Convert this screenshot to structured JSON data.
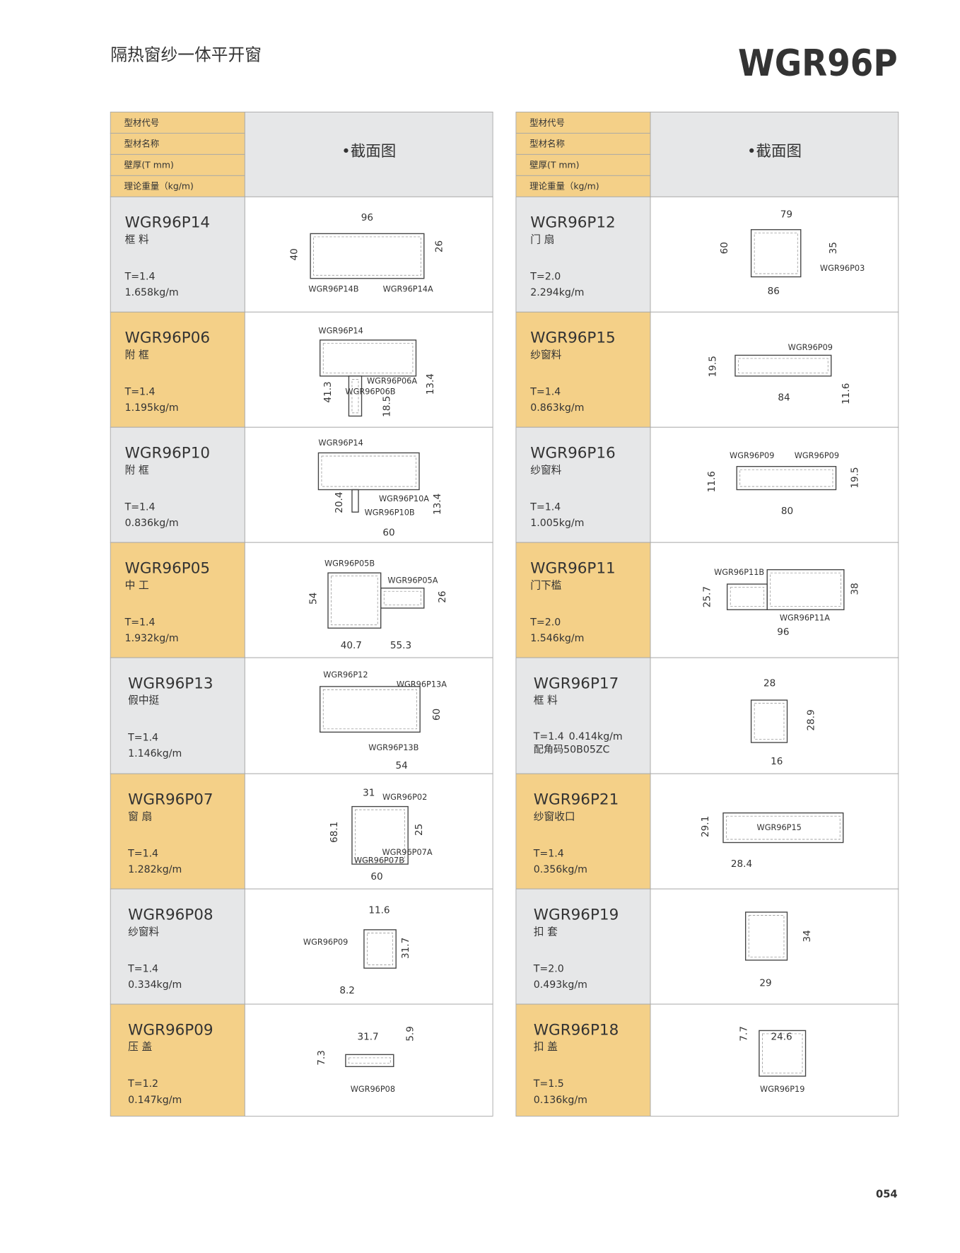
{
  "header": {
    "subtitle": "隔热窗纱一体平开窗",
    "title": "WGR96P"
  },
  "tables": [
    {
      "head": {
        "labels": [
          "型材代号",
          "型材名称",
          "壁厚(T mm)",
          "理论重量（kg/m)"
        ],
        "section": "•截面图"
      },
      "rows": [
        {
          "code": "WGR96P14",
          "name": "框 料",
          "thickness": "T=1.4",
          "weight": "1.658kg/m",
          "drawing": [
            "96",
            "40",
            "26",
            "WGR96P14B",
            "WGR96P14A"
          ]
        },
        {
          "code": "WGR96P06",
          "name": "附 框",
          "thickness": "T=1.4",
          "weight": "1.195kg/m",
          "drawing": [
            "WGR96P14",
            "WGR96P06A",
            "WGR96P06B",
            "41.3",
            "18.5",
            "13.4"
          ]
        },
        {
          "code": "WGR96P10",
          "name": "附 框",
          "thickness": "T=1.4",
          "weight": "0.836kg/m",
          "drawing": [
            "WGR96P14",
            "WGR96P10A",
            "WGR96P10B",
            "20.4",
            "13.4",
            "60"
          ]
        },
        {
          "code": "WGR96P05",
          "name": "中 工",
          "thickness": "T=1.4",
          "weight": "1.932kg/m",
          "drawing": [
            "WGR96P05B",
            "WGR96P05A",
            "54",
            "26",
            "40.7",
            "55.3"
          ]
        },
        {
          "code": "WGR96P13",
          "name": "假中挺",
          "thickness": "T=1.4",
          "weight": "1.146kg/m",
          "drawing": [
            "WGR96P12",
            "WGR96P13A",
            "60",
            "WGR96P13B",
            "54"
          ]
        },
        {
          "code": "WGR96P07",
          "name": "窗 扇",
          "thickness": "T=1.4",
          "weight": "1.282kg/m",
          "drawing": [
            "31",
            "WGR96P02",
            "68.1",
            "25",
            "WGR96P07A",
            "WGR96P07B",
            "60"
          ]
        },
        {
          "code": "WGR96P08",
          "name": "纱窗料",
          "thickness": "T=1.4",
          "weight": "0.334kg/m",
          "drawing": [
            "11.6",
            "WGR96P09",
            "31.7",
            "8.2"
          ]
        },
        {
          "code": "WGR96P09",
          "name": "压 盖",
          "thickness": "T=1.2",
          "weight": "0.147kg/m",
          "drawing": [
            "31.7",
            "5.9",
            "7.3",
            "WGR96P08"
          ]
        }
      ]
    },
    {
      "head": {
        "labels": [
          "型材代号",
          "型材名称",
          "壁厚(T mm)",
          "理论重量（kg/m)"
        ],
        "section": "•截面图"
      },
      "rows": [
        {
          "code": "WGR96P12",
          "name": "门 扇",
          "thickness": "T=2.0",
          "weight": "2.294kg/m",
          "drawing": [
            "79",
            "60",
            "35",
            "WGR96P03",
            "86"
          ]
        },
        {
          "code": "WGR96P15",
          "name": "纱窗料",
          "thickness": "T=1.4",
          "weight": "0.863kg/m",
          "drawing": [
            "WGR96P09",
            "19.5",
            "84",
            "11.6"
          ]
        },
        {
          "code": "WGR96P16",
          "name": "纱窗料",
          "thickness": "T=1.4",
          "weight": "1.005kg/m",
          "drawing": [
            "WGR96P09",
            "WGR96P09",
            "11.6",
            "19.5",
            "80"
          ]
        },
        {
          "code": "WGR96P11",
          "name": "门下槛",
          "thickness": "T=2.0",
          "weight": "1.546kg/m",
          "drawing": [
            "WGR96P11B",
            "25.7",
            "38",
            "WGR96P11A",
            "96"
          ]
        },
        {
          "code": "WGR96P17",
          "name": "框 料",
          "thickness": "T=1.4",
          "weight": "0.414kg/m",
          "note": "配角码50B05ZC",
          "drawing": [
            "28",
            "28.9",
            "16"
          ]
        },
        {
          "code": "WGR96P21",
          "name": "纱窗收口",
          "thickness": "T=1.4",
          "weight": "0.356kg/m",
          "drawing": [
            "29.1",
            "WGR96P15",
            "28.4"
          ]
        },
        {
          "code": "WGR96P19",
          "name": "扣 套",
          "thickness": "T=2.0",
          "weight": "0.493kg/m",
          "drawing": [
            "34",
            "29"
          ]
        },
        {
          "code": "WGR96P18",
          "name": "扣 盖",
          "thickness": "T=1.5",
          "weight": "0.136kg/m",
          "drawing": [
            "7.7",
            "24.6",
            "WGR96P19"
          ]
        }
      ]
    }
  ],
  "page_number": "054"
}
